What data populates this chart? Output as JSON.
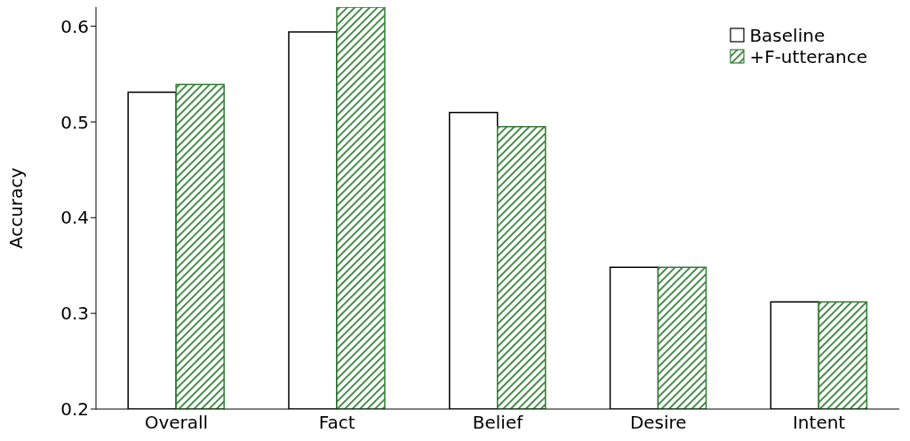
{
  "chart_data": {
    "type": "bar",
    "ylabel": "Accuracy",
    "categories": [
      "Overall",
      "Fact",
      "Belief",
      "Desire",
      "Intent"
    ],
    "series": [
      {
        "name": "Baseline",
        "color": "#ffffff",
        "values": [
          0.531,
          0.594,
          0.51,
          0.348,
          0.312
        ]
      },
      {
        "name": "+F-utterance",
        "color": "#2e7d32",
        "values": [
          0.539,
          0.62,
          0.495,
          0.348,
          0.312
        ]
      }
    ],
    "ylim": [
      0.2,
      0.62
    ],
    "yticks": [
      0.2,
      0.3,
      0.4,
      0.5,
      0.6
    ],
    "grid": false,
    "legend": "top right"
  }
}
